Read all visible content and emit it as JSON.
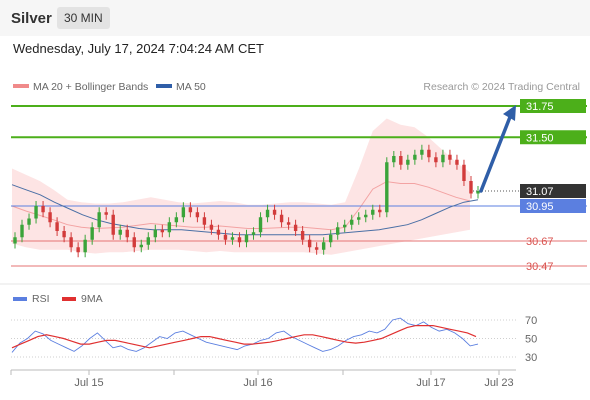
{
  "header": {
    "instrument": "Silver",
    "timeframe": "30 MIN"
  },
  "timestamp": "Wednesday, July 17, 2024 7:04:24 AM CET",
  "credit": "Research © 2024 Trading Central",
  "colors": {
    "resistance": "#4caf1a",
    "support": "#e57373",
    "pivot": "#5b7fe0",
    "current": "#333333",
    "band_fill": "#fde4e4",
    "ma50": "#4a6fa5",
    "bull_candle": "#3aa43a",
    "bear_candle": "#d23b3b",
    "arrow": "#2f5ea8",
    "rsi": "#5b7fe0",
    "rsi_ma": "#e03030"
  },
  "chart_data": [
    {
      "type": "candlestick",
      "title": "",
      "legend": [
        {
          "name": "MA 20 + Bollinger Bands",
          "color": "#f08a8a"
        },
        {
          "name": "MA 50",
          "color": "#2f5ea8"
        }
      ],
      "ylim": [
        30.35,
        31.85
      ],
      "x_ticks": [
        "Jul 15",
        "Jul 16",
        "Jul 17",
        "Jul 23"
      ],
      "levels": [
        {
          "value": 31.75,
          "label": "31.75",
          "kind": "resistance"
        },
        {
          "value": 31.5,
          "label": "31.50",
          "kind": "resistance"
        },
        {
          "value": 31.07,
          "label": "31.07",
          "kind": "current"
        },
        {
          "value": 30.95,
          "label": "30.95",
          "kind": "pivot"
        },
        {
          "value": 30.67,
          "label": "30.67",
          "kind": "support"
        },
        {
          "value": 30.47,
          "label": "30.47",
          "kind": "support"
        }
      ],
      "close_series": [
        30.7,
        30.8,
        30.85,
        30.95,
        30.9,
        30.82,
        30.75,
        30.7,
        30.62,
        30.58,
        30.68,
        30.78,
        30.9,
        30.88,
        30.72,
        30.76,
        30.7,
        30.62,
        30.64,
        30.7,
        30.76,
        30.74,
        30.82,
        30.86,
        30.94,
        30.9,
        30.86,
        30.8,
        30.76,
        30.72,
        30.68,
        30.7,
        30.66,
        30.72,
        30.74,
        30.86,
        30.92,
        30.88,
        30.82,
        30.8,
        30.75,
        30.68,
        30.62,
        30.6,
        30.66,
        30.72,
        30.78,
        30.8,
        30.84,
        30.86,
        30.88,
        30.92,
        30.9,
        31.3,
        31.35,
        31.28,
        31.32,
        31.36,
        31.4,
        31.34,
        31.3,
        31.36,
        31.32,
        31.28,
        31.15,
        31.05,
        31.07
      ],
      "ma50": [
        31.12,
        31.08,
        31.04,
        30.98,
        30.93,
        30.88,
        30.84,
        30.81,
        30.79,
        30.77,
        30.76,
        30.76,
        30.76,
        30.75,
        30.74,
        30.73,
        30.72,
        30.72,
        30.72,
        30.72,
        30.72,
        30.72,
        30.72,
        30.73,
        30.74,
        30.75,
        30.76,
        30.78,
        30.8,
        30.84,
        30.89,
        30.94,
        30.98,
        31.0
      ],
      "band_upper": [
        31.25,
        31.2,
        31.15,
        31.08,
        31.0,
        30.98,
        30.97,
        30.97,
        30.98,
        31.0,
        31.02,
        31.0,
        30.98,
        30.97,
        30.98,
        30.99,
        30.98,
        30.96,
        30.96,
        30.97,
        30.98,
        30.98,
        30.97,
        30.96,
        30.98,
        31.25,
        31.55,
        31.65,
        31.6,
        31.58,
        31.5,
        31.4,
        31.3,
        31.22
      ],
      "band_lower": [
        30.65,
        30.62,
        30.6,
        30.6,
        30.6,
        30.58,
        30.57,
        30.58,
        30.58,
        30.59,
        30.6,
        30.6,
        30.6,
        30.59,
        30.58,
        30.59,
        30.58,
        30.58,
        30.58,
        30.58,
        30.58,
        30.58,
        30.57,
        30.56,
        30.58,
        30.6,
        30.62,
        30.64,
        30.66,
        30.68,
        30.7,
        30.72,
        30.74,
        30.76
      ]
    },
    {
      "type": "line",
      "title": "",
      "legend": [
        {
          "name": "RSI",
          "color": "#5b7fe0"
        },
        {
          "name": "9MA",
          "color": "#e03030"
        }
      ],
      "ylim": [
        20,
        80
      ],
      "y_ticks": [
        "70",
        "50",
        "30"
      ],
      "series": [
        {
          "name": "RSI",
          "values": [
            35,
            45,
            50,
            58,
            55,
            48,
            44,
            40,
            36,
            42,
            50,
            56,
            48,
            40,
            42,
            38,
            36,
            40,
            46,
            52,
            50,
            56,
            58,
            54,
            50,
            46,
            44,
            42,
            40,
            38,
            42,
            44,
            48,
            50,
            56,
            58,
            52,
            48,
            44,
            40,
            36,
            38,
            42,
            48,
            52,
            54,
            58,
            56,
            60,
            70,
            72,
            66,
            64,
            68,
            62,
            58,
            60,
            56,
            50,
            42,
            44
          ]
        },
        {
          "name": "9MA",
          "values": [
            40,
            44,
            48,
            52,
            54,
            52,
            50,
            47,
            44,
            44,
            46,
            48,
            48,
            46,
            44,
            42,
            40,
            42,
            44,
            46,
            48,
            50,
            52,
            52,
            50,
            48,
            46,
            44,
            44,
            45,
            46,
            48,
            50,
            52,
            54,
            54,
            52,
            50,
            48,
            46,
            45,
            46,
            48,
            50,
            54,
            58,
            62,
            64,
            64,
            64,
            62,
            60,
            58,
            56,
            52
          ]
        }
      ]
    }
  ]
}
